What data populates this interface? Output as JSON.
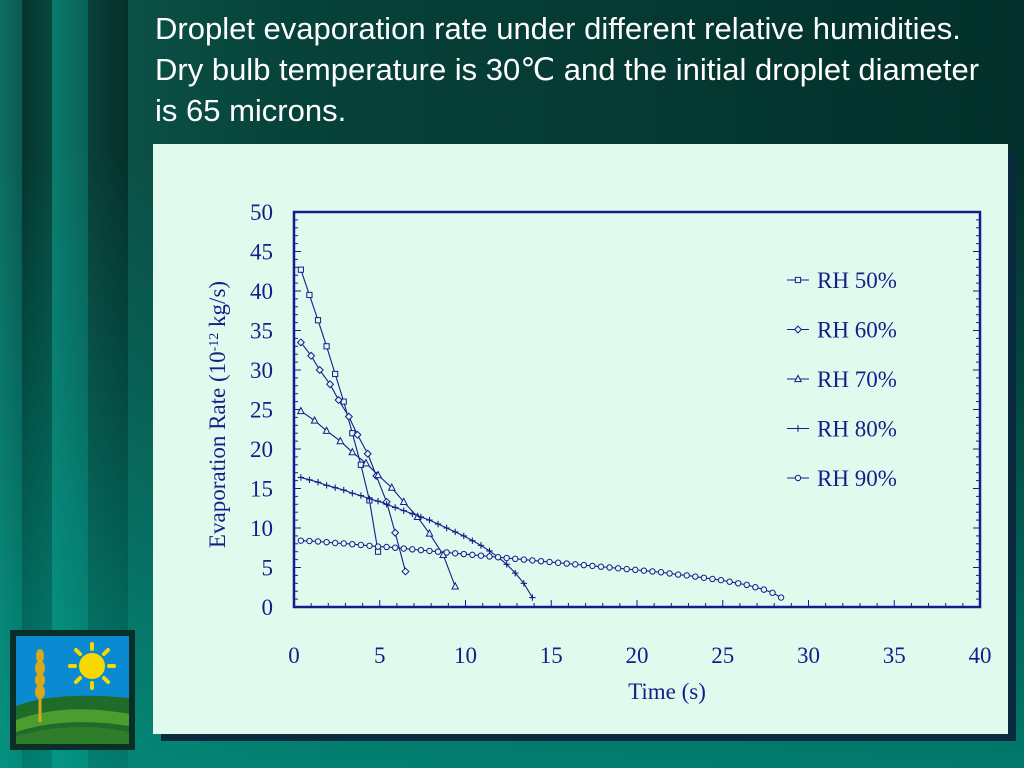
{
  "slide": {
    "title": "Droplet evaporation rate under different relative humidities. Dry bulb temperature is 30℃ and the initial droplet diameter is 65 microns."
  },
  "colors": {
    "plot_ink": "#1a1a8a",
    "panel_bg": "#e0fbee",
    "title_text": "#ffffff"
  },
  "icons": [
    "wheat-sun-farm-logo"
  ],
  "chart_data": {
    "type": "line",
    "title": "",
    "xlabel": "Time (s)",
    "ylabel": "Evaporation Rate (10",
    "ylabel_sup": "-12",
    "ylabel_tail": " kg/s)",
    "xlim": [
      0,
      40
    ],
    "ylim": [
      0,
      50
    ],
    "xticks": [
      0,
      5,
      10,
      15,
      20,
      25,
      30,
      35,
      40
    ],
    "yticks": [
      0,
      5,
      10,
      15,
      20,
      25,
      30,
      35,
      40,
      45,
      50
    ],
    "grid": false,
    "legend_position": "top-right",
    "series": [
      {
        "name": "RH 50%",
        "marker": "square",
        "x": [
          0.4,
          0.9,
          1.4,
          1.9,
          2.4,
          2.9,
          3.4,
          3.9,
          4.4,
          4.9
        ],
        "y": [
          42.7,
          39.5,
          36.3,
          33,
          29.5,
          26,
          22,
          18,
          13.5,
          7
        ]
      },
      {
        "name": "RH 60%",
        "marker": "diamond",
        "x": [
          0.4,
          1,
          1.5,
          2.1,
          2.6,
          3.2,
          3.7,
          4.3,
          4.8,
          5.4,
          5.9,
          6.5
        ],
        "y": [
          33.5,
          31.8,
          30,
          28.2,
          26.2,
          24.1,
          21.8,
          19.4,
          16.6,
          13.3,
          9.4,
          4.5
        ]
      },
      {
        "name": "RH 70%",
        "marker": "triangle",
        "x": [
          0.4,
          1.2,
          1.9,
          2.7,
          3.4,
          4.2,
          4.9,
          5.7,
          6.4,
          7.2,
          7.9,
          8.7,
          9.4
        ],
        "y": [
          24.8,
          23.6,
          22.3,
          21,
          19.6,
          18.2,
          16.7,
          15.1,
          13.3,
          11.4,
          9.3,
          6.6,
          2.6
        ]
      },
      {
        "name": "RH 80%",
        "marker": "plus",
        "x": [
          0.4,
          0.9,
          1.4,
          1.9,
          2.4,
          2.9,
          3.4,
          3.9,
          4.4,
          4.9,
          5.4,
          5.9,
          6.4,
          6.9,
          7.4,
          7.9,
          8.4,
          8.9,
          9.4,
          9.9,
          10.4,
          10.9,
          11.4,
          11.9,
          12.4,
          12.9,
          13.4,
          13.9
        ],
        "y": [
          16.4,
          16.1,
          15.8,
          15.4,
          15.1,
          14.8,
          14.4,
          14.1,
          13.7,
          13.4,
          13,
          12.6,
          12.2,
          11.8,
          11.4,
          11,
          10.5,
          10,
          9.5,
          9,
          8.4,
          7.8,
          7.1,
          6.3,
          5.4,
          4.3,
          3,
          1.2
        ]
      },
      {
        "name": "RH 90%",
        "marker": "circle",
        "x": [
          0.4,
          0.9,
          1.4,
          1.9,
          2.4,
          2.9,
          3.4,
          3.9,
          4.4,
          4.9,
          5.4,
          5.9,
          6.4,
          6.9,
          7.4,
          7.9,
          8.4,
          8.9,
          9.4,
          9.9,
          10.4,
          10.9,
          11.4,
          11.9,
          12.4,
          12.9,
          13.4,
          13.9,
          14.4,
          14.9,
          15.4,
          15.9,
          16.4,
          16.9,
          17.4,
          17.9,
          18.4,
          18.9,
          19.4,
          19.9,
          20.4,
          20.9,
          21.4,
          21.9,
          22.4,
          22.9,
          23.4,
          23.9,
          24.4,
          24.9,
          25.4,
          25.9,
          26.4,
          26.9,
          27.4,
          27.9,
          28.4
        ],
        "y": [
          8.4,
          8.35,
          8.3,
          8.2,
          8.1,
          8.05,
          7.95,
          7.85,
          7.75,
          7.65,
          7.6,
          7.5,
          7.4,
          7.3,
          7.2,
          7.1,
          7.0,
          6.9,
          6.8,
          6.7,
          6.6,
          6.5,
          6.4,
          6.3,
          6.2,
          6.1,
          6.0,
          5.9,
          5.8,
          5.7,
          5.6,
          5.5,
          5.4,
          5.3,
          5.2,
          5.1,
          5.0,
          4.9,
          4.8,
          4.7,
          4.6,
          4.5,
          4.4,
          4.25,
          4.1,
          4.0,
          3.85,
          3.7,
          3.55,
          3.4,
          3.2,
          3.0,
          2.8,
          2.5,
          2.2,
          1.8,
          1.2
        ]
      }
    ]
  }
}
